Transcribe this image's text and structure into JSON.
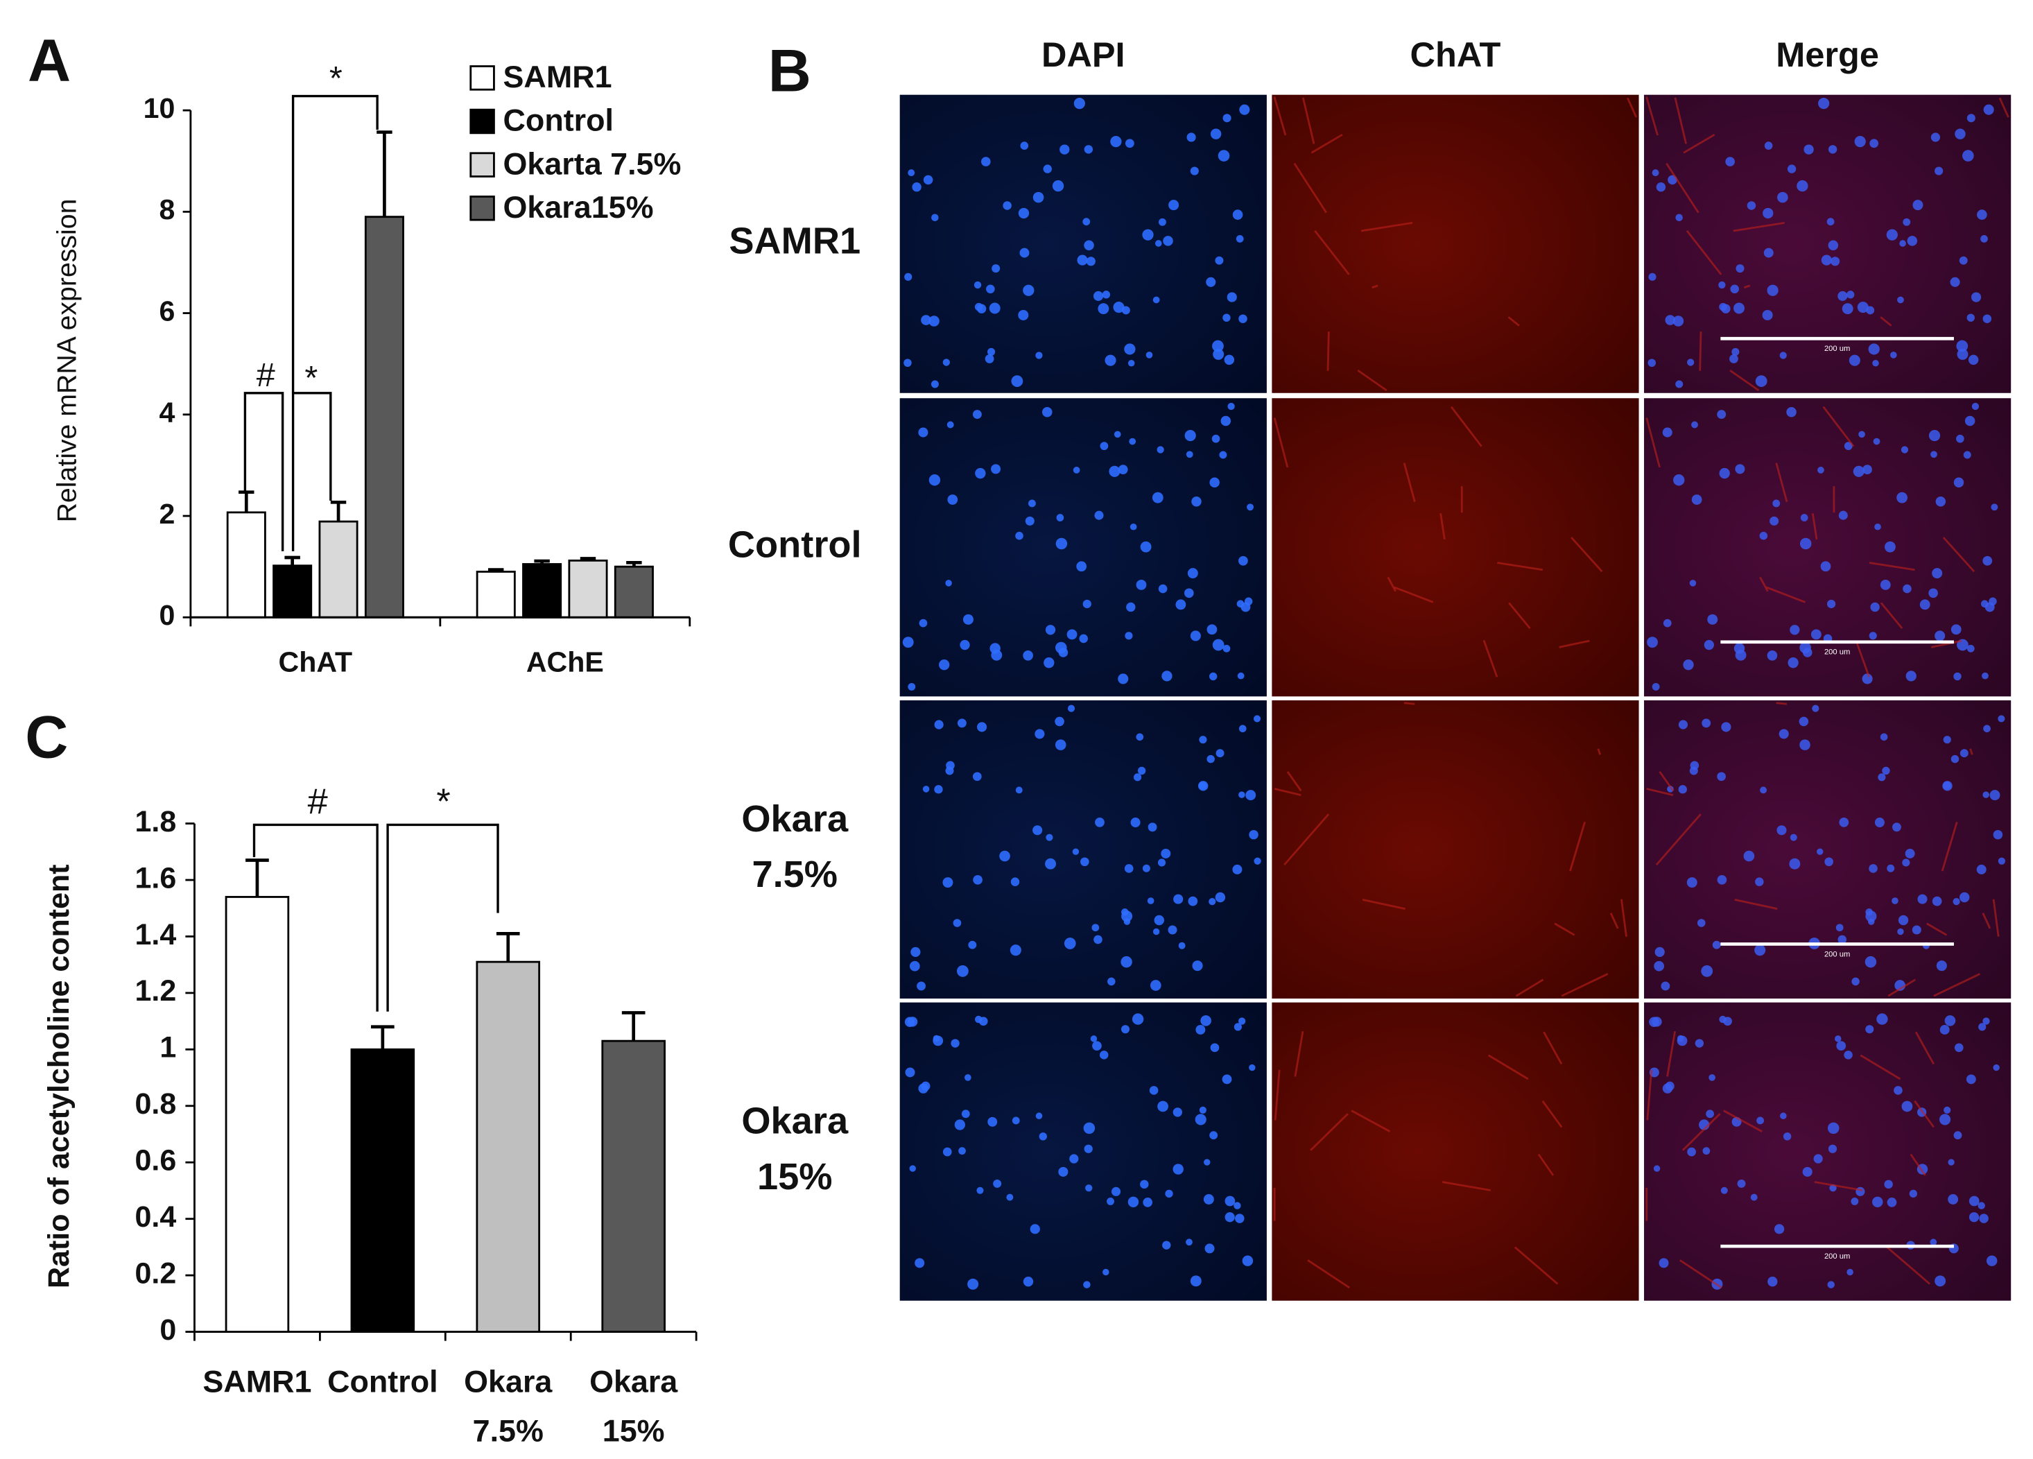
{
  "chart_data": [
    {
      "type": "bar",
      "panel": "A",
      "ylabel": "Relative mRNA expression",
      "categories": [
        "ChAT",
        "AChE"
      ],
      "series": [
        {
          "name": "SAMR1",
          "color": "#ffffff",
          "values": [
            2.07,
            0.9
          ],
          "errors": [
            0.4,
            0.04
          ]
        },
        {
          "name": "Control",
          "color": "#000000",
          "values": [
            1.02,
            1.05
          ],
          "errors": [
            0.16,
            0.06
          ]
        },
        {
          "name": "Okarta 7.5%",
          "color": "#d9d9d9",
          "values": [
            1.89,
            1.12
          ],
          "errors": [
            0.38,
            0.04
          ]
        },
        {
          "name": "Okara15%",
          "color": "#595959",
          "values": [
            7.9,
            1.0
          ],
          "errors": [
            1.67,
            0.08
          ]
        }
      ],
      "ylim": [
        0,
        10
      ],
      "yticks": [
        0,
        2,
        4,
        6,
        8,
        10
      ],
      "annotations": [
        "#",
        "*",
        "*"
      ]
    },
    {
      "type": "bar",
      "panel": "C",
      "ylabel": "Ratio of acetylcholine content",
      "categories": [
        "SAMR1",
        "Control",
        "Okara 7.5%",
        "Okara 15%"
      ],
      "colors": [
        "#ffffff",
        "#000000",
        "#bfbfbf",
        "#595959"
      ],
      "values": [
        1.54,
        1.0,
        1.31,
        1.03
      ],
      "errors": [
        0.13,
        0.08,
        0.1,
        0.1
      ],
      "ylim": [
        0,
        1.8
      ],
      "yticks": [
        0,
        0.2,
        0.4,
        0.6,
        0.8,
        1,
        1.2,
        1.4,
        1.6,
        1.8
      ],
      "annotations": [
        "#",
        "*"
      ]
    }
  ],
  "panel_b": {
    "label": "B",
    "columns": [
      "DAPI",
      "ChAT",
      "Merge"
    ],
    "rows": [
      "SAMR1",
      "Control",
      "Okara 7.5%",
      "Okara 15%"
    ],
    "scale_bar": "200 um"
  }
}
